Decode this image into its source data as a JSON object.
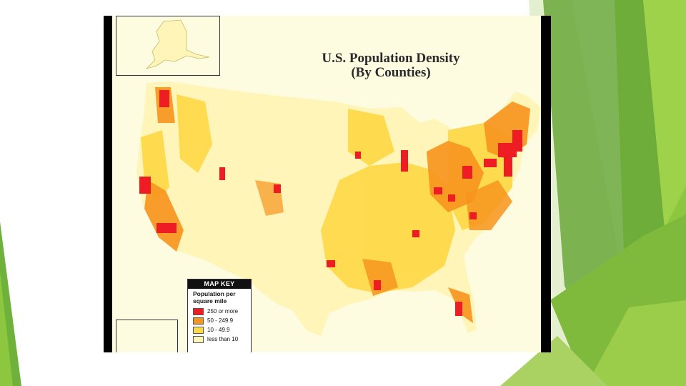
{
  "map": {
    "title_line1": "U.S. Population Density",
    "title_line2": "(By Counties)"
  },
  "key": {
    "heading": "MAP KEY",
    "subtitle_line1": "Population per",
    "subtitle_line2": "square mile",
    "items": [
      {
        "label": "250 or more",
        "color": "#ee1d23"
      },
      {
        "label": "50 - 249.9",
        "color": "#f7941d"
      },
      {
        "label": "10 - 49.9",
        "color": "#fed94a"
      },
      {
        "label": "less than 10",
        "color": "#fff5b8"
      }
    ]
  },
  "theme": {
    "accent_green_dark": "#5d9b2f",
    "accent_green_light": "#8dc63f"
  }
}
